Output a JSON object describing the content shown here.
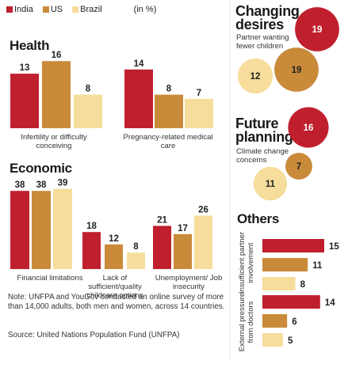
{
  "legend": {
    "items": [
      {
        "label": "India",
        "color": "#c0202e"
      },
      {
        "label": "US",
        "color": "#c98a3a"
      },
      {
        "label": "Brazil",
        "color": "#f6dd9c"
      }
    ],
    "unit": "(in %)"
  },
  "sections": {
    "health": "Health",
    "economic": "Economic",
    "changing": "Changing desires",
    "future": "Future planning",
    "others": "Others"
  },
  "chart_data": [
    {
      "type": "bar",
      "title": "Health",
      "categories": [
        "Infertility or difficulty conceiving",
        "Pregnancy-related medical care"
      ],
      "series": [
        {
          "name": "India",
          "values": [
            13,
            14
          ]
        },
        {
          "name": "US",
          "values": [
            16,
            8
          ]
        },
        {
          "name": "Brazil",
          "values": [
            8,
            7
          ]
        }
      ]
    },
    {
      "type": "bar",
      "title": "Economic",
      "categories": [
        "Financial limitations",
        "Lack of sufficient/quality childcare options",
        "Unemployment/ Job insecurity"
      ],
      "series": [
        {
          "name": "India",
          "values": [
            38,
            18,
            21
          ]
        },
        {
          "name": "US",
          "values": [
            38,
            12,
            17
          ]
        },
        {
          "name": "Brazil",
          "values": [
            39,
            8,
            26
          ]
        }
      ]
    },
    {
      "type": "bubble",
      "title": "Changing desires",
      "categories": [
        "Partner wanting fewer children"
      ],
      "series": [
        {
          "name": "India",
          "values": [
            19
          ]
        },
        {
          "name": "US",
          "values": [
            19
          ]
        },
        {
          "name": "Brazil",
          "values": [
            12
          ]
        }
      ]
    },
    {
      "type": "bubble",
      "title": "Future planning",
      "categories": [
        "Climate change concerns"
      ],
      "series": [
        {
          "name": "India",
          "values": [
            16
          ]
        },
        {
          "name": "US",
          "values": [
            7
          ]
        },
        {
          "name": "Brazil",
          "values": [
            11
          ]
        }
      ]
    },
    {
      "type": "bar",
      "orientation": "horizontal",
      "title": "Others",
      "categories": [
        "Insufficient partner involvement",
        "External pressure from doctors"
      ],
      "series": [
        {
          "name": "India",
          "values": [
            15,
            14
          ]
        },
        {
          "name": "US",
          "values": [
            11,
            6
          ]
        },
        {
          "name": "Brazil",
          "values": [
            8,
            5
          ]
        }
      ]
    }
  ],
  "note": "Note: UNFPA and YouGov conducted an online survey of more than 14,000 adults, both men and women, across 14 countries.",
  "source": "Source: United Nations Population Fund (UNFPA)"
}
